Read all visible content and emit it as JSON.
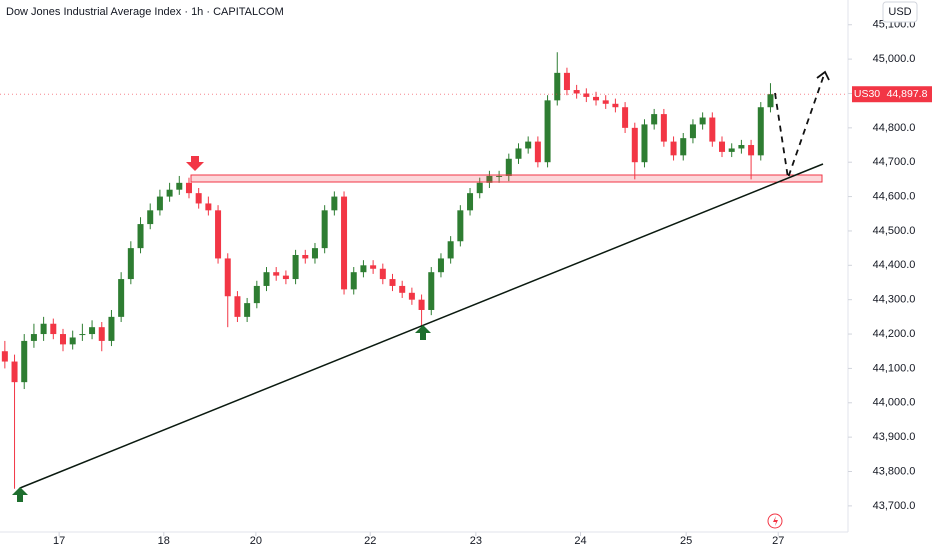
{
  "chart_data": {
    "type": "candlestick",
    "title": "Dow Jones Industrial Average Index · 1h · CAPITALCOM",
    "currency": "USD",
    "up_color": "#2e7d32",
    "down_color": "#f23645",
    "x": [
      0,
      1,
      2,
      3,
      4,
      5,
      6,
      7,
      8,
      9,
      10,
      11,
      12,
      13,
      14,
      15,
      16,
      17,
      18,
      19,
      20,
      21,
      22,
      23,
      24,
      25,
      26,
      27,
      28,
      29,
      30,
      31,
      32,
      33,
      34,
      35,
      36,
      37,
      38,
      39,
      40,
      41,
      42,
      43,
      44,
      45,
      46,
      47,
      48,
      49,
      50,
      51,
      52,
      53,
      54,
      55,
      56,
      57,
      58,
      59,
      60,
      61,
      62,
      63,
      64,
      65,
      66,
      67,
      68,
      69,
      70,
      71,
      72,
      73,
      74,
      75,
      76,
      77,
      78,
      79
    ],
    "ohlc": [
      [
        44150,
        44180,
        44100,
        44120
      ],
      [
        44120,
        44140,
        43750,
        44060
      ],
      [
        44060,
        44200,
        44040,
        44180
      ],
      [
        44180,
        44230,
        44160,
        44200
      ],
      [
        44200,
        44250,
        44180,
        44230
      ],
      [
        44230,
        44245,
        44185,
        44200
      ],
      [
        44200,
        44215,
        44150,
        44170
      ],
      [
        44170,
        44210,
        44155,
        44190
      ],
      [
        44200,
        44230,
        44180,
        44200
      ],
      [
        44200,
        44240,
        44185,
        44220
      ],
      [
        44220,
        44235,
        44150,
        44180
      ],
      [
        44180,
        44270,
        44165,
        44250
      ],
      [
        44250,
        44380,
        44235,
        44360
      ],
      [
        44360,
        44470,
        44345,
        44450
      ],
      [
        44450,
        44540,
        44435,
        44520
      ],
      [
        44520,
        44580,
        44505,
        44560
      ],
      [
        44560,
        44620,
        44545,
        44600
      ],
      [
        44600,
        44640,
        44585,
        44620
      ],
      [
        44620,
        44660,
        44605,
        44640
      ],
      [
        44640,
        44655,
        44595,
        44610
      ],
      [
        44610,
        44625,
        44565,
        44580
      ],
      [
        44580,
        44600,
        44545,
        44560
      ],
      [
        44560,
        44575,
        44405,
        44420
      ],
      [
        44420,
        44435,
        44220,
        44310
      ],
      [
        44310,
        44325,
        44235,
        44250
      ],
      [
        44250,
        44305,
        44235,
        44290
      ],
      [
        44290,
        44355,
        44275,
        44340
      ],
      [
        44340,
        44395,
        44325,
        44380
      ],
      [
        44380,
        44395,
        44355,
        44370
      ],
      [
        44370,
        44385,
        44345,
        44360
      ],
      [
        44360,
        44445,
        44345,
        44430
      ],
      [
        44430,
        44445,
        44405,
        44420
      ],
      [
        44420,
        44465,
        44405,
        44450
      ],
      [
        44450,
        44575,
        44435,
        44560
      ],
      [
        44560,
        44615,
        44545,
        44600
      ],
      [
        44600,
        44615,
        44315,
        44330
      ],
      [
        44330,
        44395,
        44315,
        44380
      ],
      [
        44380,
        44415,
        44365,
        44400
      ],
      [
        44400,
        44415,
        44375,
        44390
      ],
      [
        44390,
        44405,
        44345,
        44360
      ],
      [
        44360,
        44375,
        44325,
        44340
      ],
      [
        44340,
        44355,
        44305,
        44320
      ],
      [
        44320,
        44335,
        44285,
        44300
      ],
      [
        44300,
        44315,
        44220,
        44270
      ],
      [
        44270,
        44395,
        44255,
        44380
      ],
      [
        44380,
        44435,
        44365,
        44420
      ],
      [
        44420,
        44485,
        44405,
        44470
      ],
      [
        44470,
        44575,
        44455,
        44560
      ],
      [
        44560,
        44625,
        44545,
        44610
      ],
      [
        44610,
        44655,
        44595,
        44640
      ],
      [
        44640,
        44675,
        44625,
        44660
      ],
      [
        44660,
        44675,
        44640,
        44660
      ],
      [
        44660,
        44725,
        44645,
        44710
      ],
      [
        44710,
        44755,
        44695,
        44740
      ],
      [
        44740,
        44775,
        44725,
        44760
      ],
      [
        44760,
        44775,
        44685,
        44700
      ],
      [
        44700,
        44895,
        44685,
        44880
      ],
      [
        44880,
        45020,
        44865,
        44960
      ],
      [
        44960,
        44975,
        44895,
        44910
      ],
      [
        44910,
        44925,
        44885,
        44900
      ],
      [
        44900,
        44915,
        44875,
        44890
      ],
      [
        44890,
        44905,
        44865,
        44880
      ],
      [
        44880,
        44895,
        44855,
        44870
      ],
      [
        44870,
        44885,
        44845,
        44860
      ],
      [
        44860,
        44875,
        44785,
        44800
      ],
      [
        44800,
        44815,
        44650,
        44700
      ],
      [
        44700,
        44825,
        44685,
        44810
      ],
      [
        44810,
        44855,
        44795,
        44840
      ],
      [
        44840,
        44855,
        44745,
        44760
      ],
      [
        44760,
        44775,
        44705,
        44720
      ],
      [
        44720,
        44785,
        44705,
        44770
      ],
      [
        44770,
        44825,
        44755,
        44810
      ],
      [
        44810,
        44845,
        44795,
        44830
      ],
      [
        44830,
        44845,
        44745,
        44760
      ],
      [
        44760,
        44775,
        44715,
        44730
      ],
      [
        44730,
        44755,
        44715,
        44740
      ],
      [
        44740,
        44765,
        44725,
        44750
      ],
      [
        44750,
        44765,
        44650,
        44720
      ],
      [
        44720,
        44875,
        44705,
        44860
      ],
      [
        44860,
        44930,
        44845,
        44898
      ]
    ],
    "xlim": [
      -0.5,
      87
    ],
    "xticks": [
      {
        "value": 5.6,
        "label": "17"
      },
      {
        "value": 16.4,
        "label": "18"
      },
      {
        "value": 25.9,
        "label": "20"
      },
      {
        "value": 37.7,
        "label": "22"
      },
      {
        "value": 48.6,
        "label": "23"
      },
      {
        "value": 59.4,
        "label": "24"
      },
      {
        "value": 70.3,
        "label": "25"
      },
      {
        "value": 79.8,
        "label": "27"
      }
    ],
    "ylim": [
      43624,
      45172
    ],
    "yticks": [
      {
        "value": 45100,
        "label": "45,100.0"
      },
      {
        "value": 45000,
        "label": "45,000.0"
      },
      {
        "value": 44900,
        "label": "44,900.0"
      },
      {
        "value": 44800,
        "label": "44,800.0"
      },
      {
        "value": 44700,
        "label": "44,700.0"
      },
      {
        "value": 44600,
        "label": "44,600.0"
      },
      {
        "value": 44500,
        "label": "44,500.0"
      },
      {
        "value": 44400,
        "label": "44,400.0"
      },
      {
        "value": 44300,
        "label": "44,300.0"
      },
      {
        "value": 44200,
        "label": "44,200.0"
      },
      {
        "value": 44100,
        "label": "44,100.0"
      },
      {
        "value": 44000,
        "label": "44,000.0"
      },
      {
        "value": 43900,
        "label": "43,900.0"
      },
      {
        "value": 43800,
        "label": "43,800.0"
      },
      {
        "value": 43700,
        "label": "43,700.0"
      }
    ],
    "last_price": {
      "name": "US30",
      "value": 44897.8,
      "label": "44,897.8"
    }
  }
}
